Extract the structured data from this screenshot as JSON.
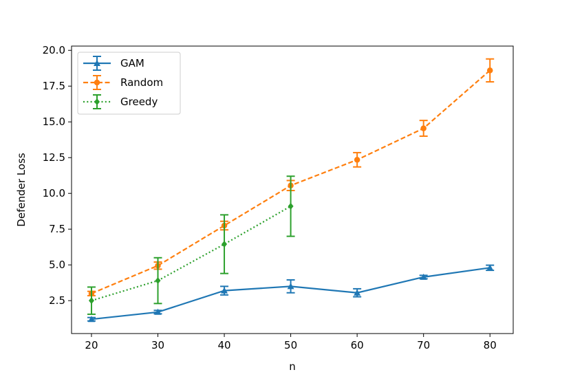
{
  "chart_data": {
    "type": "line",
    "title": "",
    "xlabel": "n",
    "ylabel": "Defender Loss",
    "xlim": [
      17,
      83.5
    ],
    "ylim": [
      0.2,
      20.3
    ],
    "xticks": [
      20,
      30,
      40,
      50,
      60,
      70,
      80
    ],
    "yticks": [
      2.5,
      5.0,
      7.5,
      10.0,
      12.5,
      15.0,
      17.5,
      20.0
    ],
    "xtick_labels": [
      "20",
      "30",
      "40",
      "50",
      "60",
      "70",
      "80"
    ],
    "ytick_labels": [
      "2.5",
      "5.0",
      "7.5",
      "10.0",
      "12.5",
      "15.0",
      "17.5",
      "20.0"
    ],
    "grid": false,
    "legend_position": "top-left",
    "series": [
      {
        "name": "GAM",
        "color": "#1f77b4",
        "linestyle": "solid",
        "marker": "triangle",
        "x": [
          20,
          30,
          40,
          50,
          60,
          70,
          80
        ],
        "y": [
          1.2,
          1.7,
          3.2,
          3.5,
          3.05,
          4.15,
          4.8
        ],
        "yerr": [
          0.12,
          0.12,
          0.3,
          0.45,
          0.28,
          0.12,
          0.18
        ]
      },
      {
        "name": "Random",
        "color": "#ff7f0e",
        "linestyle": "dashed",
        "marker": "circle",
        "x": [
          20,
          30,
          40,
          50,
          60,
          70,
          80
        ],
        "y": [
          3.0,
          4.95,
          7.75,
          10.55,
          12.35,
          14.55,
          18.6
        ],
        "yerr": [
          0.15,
          0.25,
          0.3,
          0.35,
          0.5,
          0.55,
          0.8
        ]
      },
      {
        "name": "Greedy",
        "color": "#2ca02c",
        "linestyle": "dotted",
        "marker": "diamond",
        "x": [
          20,
          30,
          40,
          50
        ],
        "y": [
          2.5,
          3.9,
          6.45,
          9.1
        ],
        "yerr": [
          0.95,
          1.6,
          2.05,
          2.1
        ]
      }
    ]
  }
}
